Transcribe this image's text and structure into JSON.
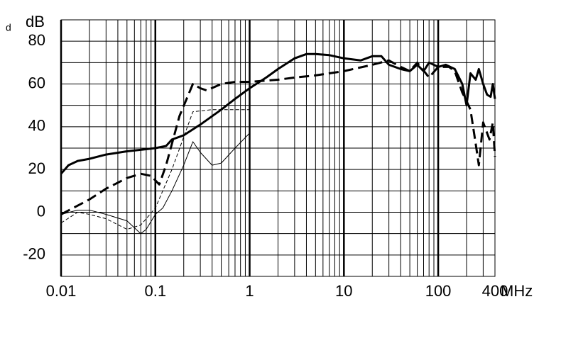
{
  "chart_data": {
    "type": "line",
    "corner_mark": "d",
    "y_label": "dB",
    "x_label": "MHz",
    "log_x": true,
    "grid": true,
    "xlim": [
      0.01,
      400
    ],
    "xticks": [
      0.01,
      0.1,
      1,
      10,
      100,
      400
    ],
    "ylim": [
      -30,
      90
    ],
    "yticks": [
      -20,
      0,
      20,
      40,
      60,
      80
    ],
    "yminor": [
      -30,
      -10,
      10,
      30,
      50,
      70,
      90
    ],
    "series": [
      {
        "color": "#000000",
        "style": "solid",
        "weight": "thick",
        "x": [
          0.01,
          0.012,
          0.015,
          0.02,
          0.03,
          0.05,
          0.08,
          0.1,
          0.13,
          0.15,
          0.2,
          0.3,
          0.5,
          0.7,
          1,
          1.5,
          2,
          3,
          4,
          5,
          7,
          10,
          15,
          20,
          25,
          30,
          40,
          50,
          60,
          70,
          80,
          100,
          120,
          150,
          180,
          200,
          220,
          250,
          270,
          300,
          330,
          360,
          380,
          400
        ],
        "values": [
          18,
          22,
          24,
          25,
          27,
          28.5,
          29.5,
          30,
          31,
          34,
          36,
          41,
          48,
          53,
          58,
          63,
          67,
          72,
          74,
          74,
          73.5,
          72,
          71,
          73,
          73,
          69,
          67,
          66,
          69,
          66,
          70,
          68,
          69,
          67,
          60,
          50,
          65,
          62,
          67,
          60,
          55,
          54,
          60,
          53
        ]
      },
      {
        "color": "#000000",
        "style": "dashed",
        "weight": "thick",
        "x": [
          0.01,
          0.02,
          0.03,
          0.05,
          0.07,
          0.09,
          0.11,
          0.13,
          0.18,
          0.25,
          0.3,
          0.35,
          0.5,
          0.7,
          1,
          2,
          3,
          5,
          10,
          20,
          30,
          40,
          50,
          60,
          80,
          100,
          130,
          150,
          180,
          200,
          220,
          250,
          270,
          300,
          350,
          380,
          400
        ],
        "values": [
          -1,
          6,
          11,
          16,
          18,
          17,
          13,
          22,
          45,
          60,
          58,
          57,
          60,
          61,
          61,
          62,
          63,
          64,
          66,
          69,
          71,
          68,
          66,
          70,
          63,
          68,
          68,
          66,
          56,
          52,
          48,
          32,
          22,
          42,
          34,
          42,
          26
        ]
      },
      {
        "color": "#000000",
        "style": "solid",
        "weight": "thin",
        "x": [
          0.01,
          0.015,
          0.02,
          0.03,
          0.05,
          0.07,
          0.08,
          0.1,
          0.12,
          0.15,
          0.2,
          0.25,
          0.3,
          0.4,
          0.5,
          0.7,
          1
        ],
        "values": [
          -1,
          1,
          1,
          -1,
          -4,
          -10,
          -8,
          -1,
          2,
          10,
          22,
          33,
          28,
          22,
          23,
          30,
          37
        ]
      },
      {
        "color": "#000000",
        "style": "dashed",
        "weight": "thin",
        "x": [
          0.01,
          0.015,
          0.02,
          0.03,
          0.05,
          0.07,
          0.1,
          0.15,
          0.25,
          0.4,
          0.7,
          1
        ],
        "values": [
          -5,
          0,
          -1,
          -3,
          -8,
          -6,
          2,
          20,
          47,
          48,
          48,
          48
        ]
      }
    ]
  }
}
